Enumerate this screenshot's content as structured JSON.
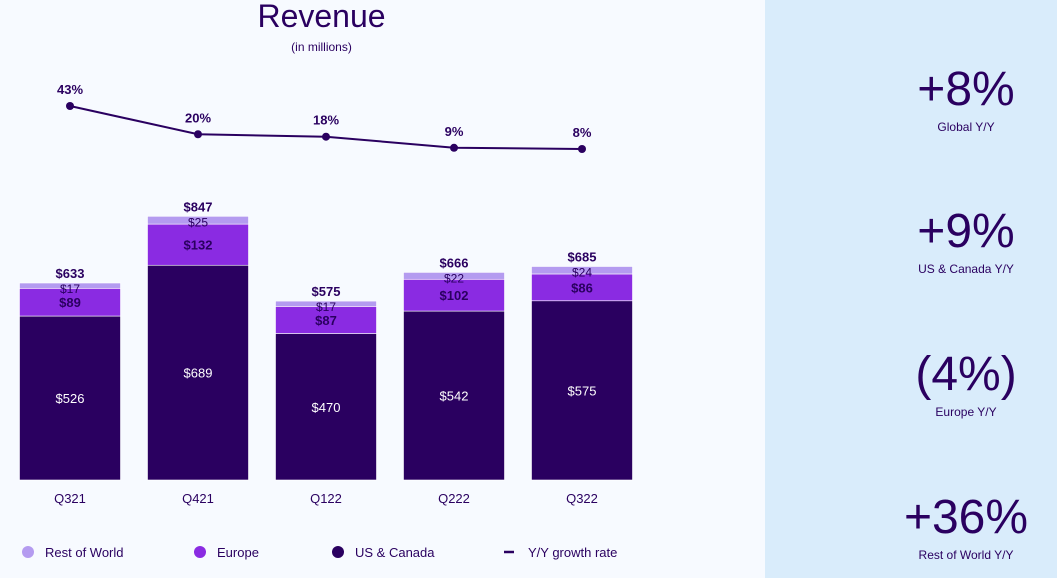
{
  "chart_data": {
    "type": "bar",
    "stacked": true,
    "title": "Revenue",
    "subtitle": "(in millions)",
    "categories": [
      "Q321",
      "Q421",
      "Q122",
      "Q222",
      "Q322"
    ],
    "series": [
      {
        "name": "US & Canada",
        "color": "#2a0060",
        "values": [
          526,
          689,
          470,
          542,
          575
        ],
        "labels": [
          "$526",
          "$689",
          "$470",
          "$542",
          "$575"
        ]
      },
      {
        "name": "Europe",
        "color": "#8a2be2",
        "values": [
          89,
          132,
          87,
          102,
          86
        ],
        "labels": [
          "$89",
          "$132",
          "$87",
          "$102",
          "$86"
        ]
      },
      {
        "name": "Rest of World",
        "color": "#b49bf0",
        "values": [
          17,
          25,
          17,
          22,
          24
        ],
        "labels": [
          "$17",
          "$25",
          "$17",
          "$22",
          "$24"
        ]
      }
    ],
    "totals": [
      "$633",
      "$847",
      "$575",
      "$666",
      "$685"
    ],
    "growth_line": {
      "name": "Y/Y growth rate",
      "color": "#2a0060",
      "values": [
        43,
        20,
        18,
        9,
        8
      ],
      "labels": [
        "43%",
        "20%",
        "18%",
        "9%",
        "8%"
      ]
    },
    "legend": [
      {
        "label": "Rest of World",
        "color": "#b49bf0",
        "marker": "dot"
      },
      {
        "label": "Europe",
        "color": "#8a2be2",
        "marker": "dot"
      },
      {
        "label": "US & Canada",
        "color": "#2a0060",
        "marker": "dot"
      },
      {
        "label": "Y/Y growth rate",
        "color": "#2a0060",
        "marker": "line"
      }
    ],
    "ylim": [
      0,
      847
    ]
  },
  "kpis": [
    {
      "value": "+8%",
      "label": "Global Y/Y"
    },
    {
      "value": "+9%",
      "label": "US & Canada Y/Y"
    },
    {
      "value": "(4%)",
      "label": "Europe Y/Y"
    },
    {
      "value": "+36%",
      "label": "Rest of World Y/Y"
    }
  ]
}
